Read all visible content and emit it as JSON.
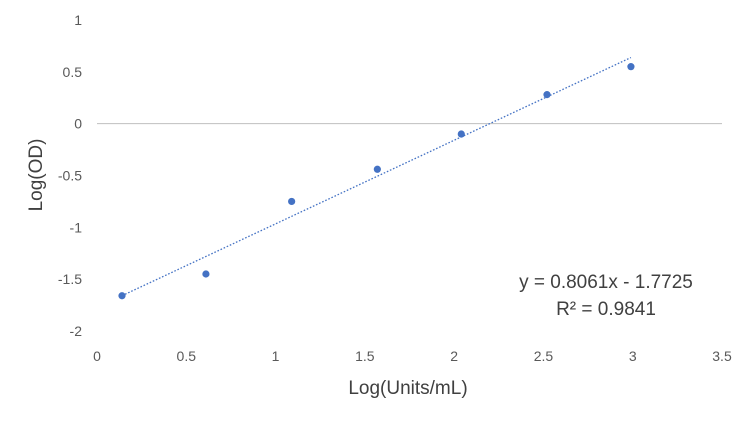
{
  "chart_data": {
    "type": "scatter",
    "title": "",
    "xlabel": "Log(Units/mL)",
    "ylabel": "Log(OD)",
    "xlim": [
      0,
      3.5
    ],
    "ylim": [
      -2,
      1
    ],
    "x_ticks": [
      0,
      0.5,
      1,
      1.5,
      2,
      2.5,
      3,
      3.5
    ],
    "y_ticks": [
      -2,
      -1.5,
      -1,
      -0.5,
      0,
      0.5,
      1
    ],
    "x_tick_labels": [
      "0",
      "0.5",
      "1",
      "1.5",
      "2",
      "2.5",
      "3",
      "3.5"
    ],
    "y_tick_labels": [
      "-2",
      "-1.5",
      "-1",
      "-0.5",
      "0",
      "0.5",
      "1"
    ],
    "grid": false,
    "points": [
      {
        "x": 0.14,
        "y": -1.66
      },
      {
        "x": 0.61,
        "y": -1.45
      },
      {
        "x": 1.09,
        "y": -0.75
      },
      {
        "x": 1.57,
        "y": -0.44
      },
      {
        "x": 2.04,
        "y": -0.1
      },
      {
        "x": 2.52,
        "y": 0.28
      },
      {
        "x": 2.99,
        "y": 0.55
      }
    ],
    "trendline": {
      "type": "linear",
      "slope": 0.8061,
      "intercept": -1.7725,
      "x_range": [
        0.14,
        2.99
      ],
      "equation": "y = 0.8061x - 1.7725",
      "r_squared": "R² = 0.9841"
    },
    "colors": {
      "marker": "#4472c4",
      "trendline": "#4472c4",
      "axis": "#bfbfbf"
    }
  }
}
